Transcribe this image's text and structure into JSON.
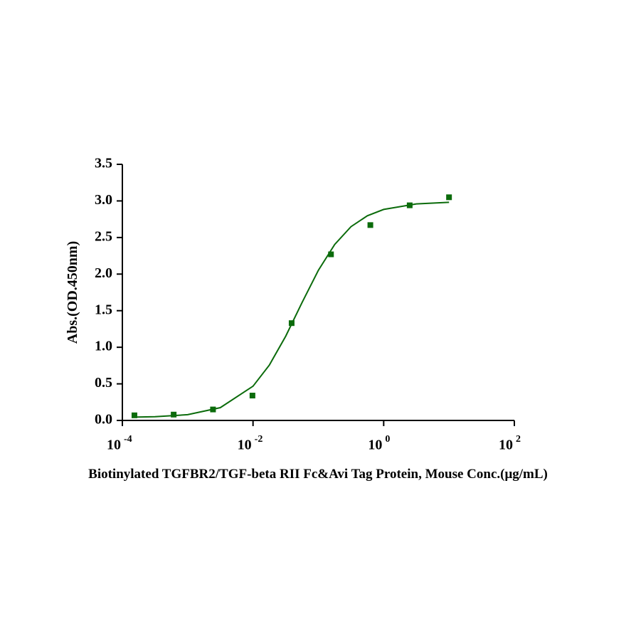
{
  "chart_data": {
    "type": "scatter",
    "x_label": "Biotinylated TGFBR2/TGF-beta RII Fc&Avi Tag Protein, Mouse Conc.(μg/mL)",
    "y_label": "Abs.(OD.450nm)",
    "x_scale": "log",
    "series": [
      {
        "color": "#0b6b0b",
        "x": [
          0.000153,
          0.00061,
          0.00244,
          0.0098,
          0.039,
          0.156,
          0.625,
          2.5,
          10
        ],
        "values": [
          0.07,
          0.08,
          0.15,
          0.34,
          1.33,
          2.27,
          2.67,
          2.94,
          3.05
        ]
      }
    ],
    "fit": {
      "color": "#0b6b0b",
      "x": [
        0.000141,
        0.000316,
        0.001,
        0.00316,
        0.01,
        0.01778,
        0.0316,
        0.0562,
        0.1,
        0.178,
        0.316,
        0.562,
        1,
        3.16,
        10
      ],
      "values": [
        0.045,
        0.051,
        0.079,
        0.175,
        0.469,
        0.756,
        1.151,
        1.61,
        2.051,
        2.405,
        2.648,
        2.797,
        2.884,
        2.959,
        2.981
      ]
    },
    "xlim": [
      0.0001,
      100
    ],
    "xticks": [
      {
        "value": 0.0001,
        "label": "10",
        "exponent": "-4"
      },
      {
        "value": 0.01,
        "label": "10",
        "exponent": "-2"
      },
      {
        "value": 1,
        "label": "10",
        "exponent": "0"
      },
      {
        "value": 100,
        "label": "10",
        "exponent": "2"
      }
    ],
    "ylim": [
      0,
      3.5
    ],
    "yticks": [
      {
        "value": 0,
        "label": "0.0"
      },
      0.5,
      {
        "value": 1,
        "label": "1.0"
      },
      1.5,
      {
        "value": 2,
        "label": "2.0"
      },
      2.5,
      {
        "value": 3,
        "label": "3.0"
      },
      3.5
    ]
  }
}
